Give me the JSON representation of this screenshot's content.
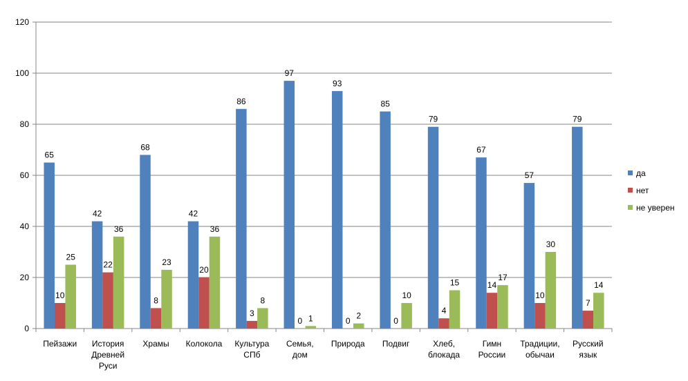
{
  "chart_data": {
    "type": "bar",
    "title": "",
    "xlabel": "",
    "ylabel": "",
    "ylim": [
      0,
      120
    ],
    "yticks": [
      0,
      20,
      40,
      60,
      80,
      100,
      120
    ],
    "grid": true,
    "legend_position": "right",
    "categories": [
      [
        "Пейзажи"
      ],
      [
        "История",
        "Древней",
        "Руси"
      ],
      [
        "Храмы"
      ],
      [
        "Колокола"
      ],
      [
        "Культура",
        "СПб"
      ],
      [
        "Семья,",
        "дом"
      ],
      [
        "Природа"
      ],
      [
        "Подвиг"
      ],
      [
        "Хлеб,",
        "блокада"
      ],
      [
        "Гимн",
        "России"
      ],
      [
        "Традиции,",
        "обычаи"
      ],
      [
        "Русский",
        "язык"
      ]
    ],
    "series": [
      {
        "name": "да",
        "color": "#4F81BD",
        "values": [
          65,
          42,
          68,
          42,
          86,
          97,
          93,
          85,
          79,
          67,
          57,
          79
        ]
      },
      {
        "name": "нет",
        "color": "#C0504D",
        "values": [
          10,
          22,
          8,
          20,
          3,
          0,
          0,
          0,
          4,
          14,
          10,
          7
        ]
      },
      {
        "name": "не уверен",
        "color": "#9BBB59",
        "values": [
          25,
          36,
          23,
          36,
          8,
          1,
          2,
          10,
          15,
          17,
          30,
          14
        ]
      }
    ]
  }
}
